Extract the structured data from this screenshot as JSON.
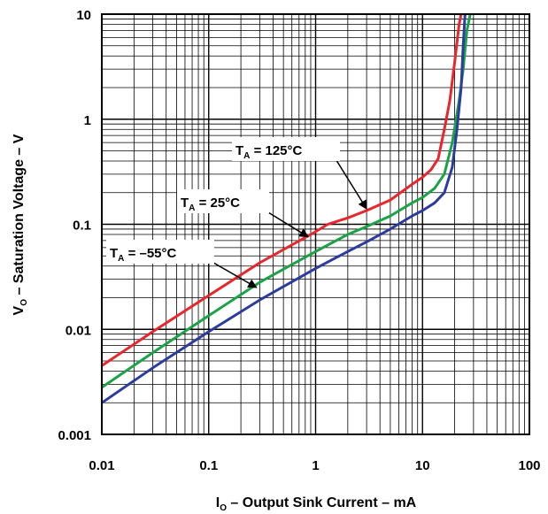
{
  "chart_data": {
    "type": "line",
    "title": "",
    "x_scale": "log",
    "y_scale": "log",
    "xlim": [
      0.01,
      100
    ],
    "ylim": [
      0.001,
      10
    ],
    "grid": true,
    "xlabel": {
      "main": "I",
      "sub": "O",
      "rest": " – Output Sink Current – mA"
    },
    "ylabel": {
      "main": "V",
      "sub": "O",
      "rest": " – Saturation Voltage – V"
    },
    "x_ticks": [
      {
        "value": 0.01,
        "label": "0.01"
      },
      {
        "value": 0.1,
        "label": "0.1"
      },
      {
        "value": 1,
        "label": "1"
      },
      {
        "value": 10,
        "label": "10"
      },
      {
        "value": 100,
        "label": "100"
      }
    ],
    "y_ticks": [
      {
        "value": 0.001,
        "label": "0.001"
      },
      {
        "value": 0.01,
        "label": "0.01"
      },
      {
        "value": 0.1,
        "label": "0.1"
      },
      {
        "value": 1,
        "label": "1"
      },
      {
        "value": 10,
        "label": "10"
      }
    ],
    "series": [
      {
        "color": "#e8262c",
        "label": {
          "main": "T",
          "sub": "A",
          "rest": " = 125°C"
        },
        "points": [
          [
            0.01,
            0.0045
          ],
          [
            0.03,
            0.0095
          ],
          [
            0.1,
            0.021
          ],
          [
            0.3,
            0.043
          ],
          [
            1,
            0.085
          ],
          [
            1.3,
            0.1
          ],
          [
            2,
            0.115
          ],
          [
            3,
            0.135
          ],
          [
            5,
            0.17
          ],
          [
            8,
            0.24
          ],
          [
            10,
            0.28
          ],
          [
            12,
            0.33
          ],
          [
            14,
            0.42
          ],
          [
            16,
            0.8
          ],
          [
            18,
            1.5
          ],
          [
            20,
            3.5
          ],
          [
            22,
            8
          ],
          [
            23,
            10
          ]
        ]
      },
      {
        "color": "#1aa346",
        "label": {
          "main": "T",
          "sub": "A",
          "rest": " = 25°C"
        },
        "points": [
          [
            0.01,
            0.0028
          ],
          [
            0.03,
            0.006
          ],
          [
            0.1,
            0.0135
          ],
          [
            0.3,
            0.028
          ],
          [
            1,
            0.055
          ],
          [
            2,
            0.08
          ],
          [
            3,
            0.095
          ],
          [
            5,
            0.12
          ],
          [
            8,
            0.16
          ],
          [
            10,
            0.18
          ],
          [
            13,
            0.22
          ],
          [
            16,
            0.3
          ],
          [
            19,
            0.6
          ],
          [
            22,
            1.5
          ],
          [
            24,
            3
          ],
          [
            26,
            7
          ],
          [
            28,
            10
          ]
        ]
      },
      {
        "color": "#2b3c9e",
        "label": {
          "main": "T",
          "sub": "A",
          "rest": " = –55°C"
        },
        "points": [
          [
            0.01,
            0.002
          ],
          [
            0.03,
            0.0043
          ],
          [
            0.1,
            0.0095
          ],
          [
            0.3,
            0.019
          ],
          [
            1,
            0.038
          ],
          [
            2,
            0.055
          ],
          [
            3,
            0.068
          ],
          [
            5,
            0.09
          ],
          [
            8,
            0.12
          ],
          [
            10,
            0.135
          ],
          [
            13,
            0.16
          ],
          [
            16,
            0.2
          ],
          [
            19,
            0.35
          ],
          [
            21,
            0.8
          ],
          [
            23,
            2
          ],
          [
            24,
            5
          ],
          [
            25,
            10
          ]
        ]
      }
    ],
    "annotations": [
      {
        "series": 0,
        "arrow_to": [
          3.0,
          0.14
        ]
      },
      {
        "series": 1,
        "arrow_to": [
          0.85,
          0.076
        ]
      },
      {
        "series": 2,
        "arrow_to": [
          0.28,
          0.025
        ]
      }
    ]
  }
}
